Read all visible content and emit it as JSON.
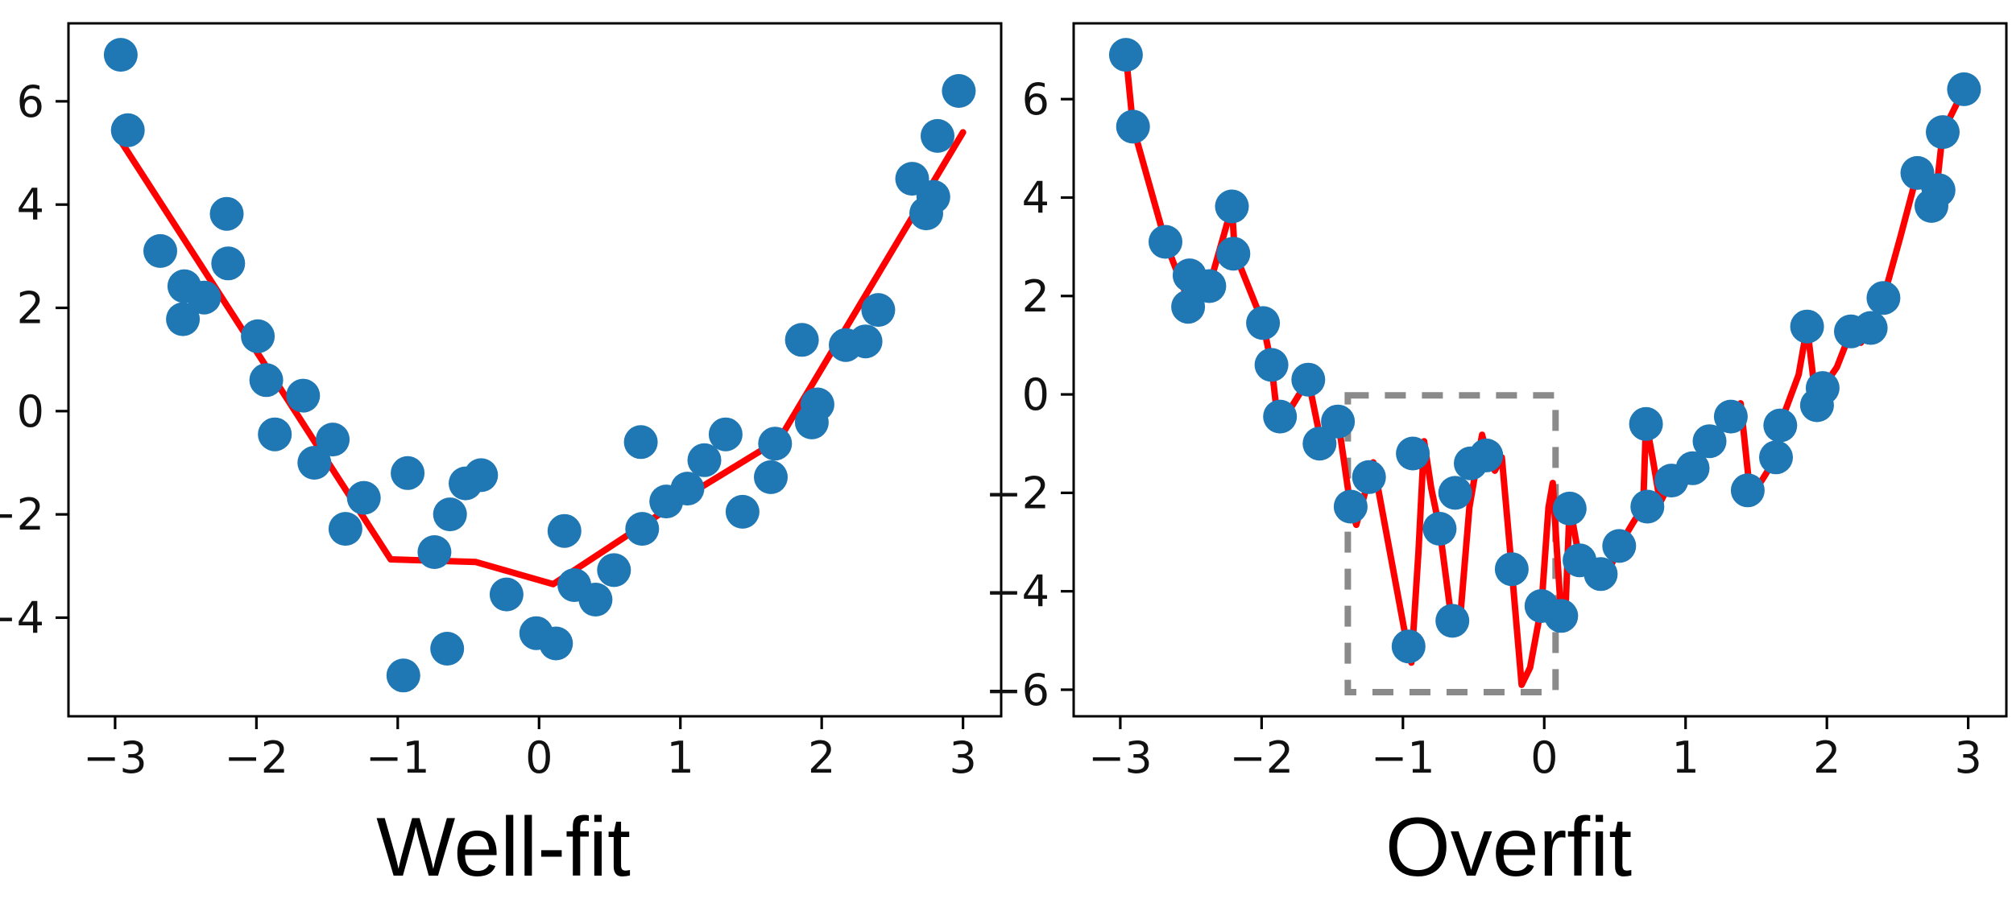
{
  "chart_data": {
    "type": "scatter",
    "description": "Two matplotlib-style panels comparing a well-fit model and an overfit model on the same noisy parabola-like dataset",
    "colors": {
      "scatter": "#1f77b4",
      "fit_line": "#ff0000",
      "highlight_box": "#8a8a8a",
      "axis": "#000000",
      "tick_text": "#111111",
      "title_text": "#000000",
      "background": "#ffffff"
    },
    "scatter": [
      [
        -2.96,
        6.9
      ],
      [
        -2.91,
        5.44
      ],
      [
        -2.68,
        3.1
      ],
      [
        -2.51,
        2.42
      ],
      [
        -2.52,
        1.78
      ],
      [
        -2.37,
        2.2
      ],
      [
        -2.21,
        3.82
      ],
      [
        -2.2,
        2.86
      ],
      [
        -1.99,
        1.45
      ],
      [
        -1.93,
        0.6
      ],
      [
        -1.87,
        -0.45
      ],
      [
        -1.67,
        0.3
      ],
      [
        -1.59,
        -1.0
      ],
      [
        -1.46,
        -0.55
      ],
      [
        -1.37,
        -2.28
      ],
      [
        -1.24,
        -1.68
      ],
      [
        -0.96,
        -5.12
      ],
      [
        -0.93,
        -1.2
      ],
      [
        -0.74,
        -2.73
      ],
      [
        -0.65,
        -4.6
      ],
      [
        -0.63,
        -2.0
      ],
      [
        -0.52,
        -1.4
      ],
      [
        -0.41,
        -1.24
      ],
      [
        -0.23,
        -3.55
      ],
      [
        -0.02,
        -4.3
      ],
      [
        0.12,
        -4.5
      ],
      [
        0.18,
        -2.32
      ],
      [
        0.25,
        -3.37
      ],
      [
        0.4,
        -3.65
      ],
      [
        0.53,
        -3.08
      ],
      [
        0.72,
        -0.6
      ],
      [
        0.73,
        -2.28
      ],
      [
        0.9,
        -1.75
      ],
      [
        1.05,
        -1.5
      ],
      [
        1.17,
        -0.95
      ],
      [
        1.32,
        -0.45
      ],
      [
        1.44,
        -1.95
      ],
      [
        1.64,
        -1.28
      ],
      [
        1.67,
        -0.63
      ],
      [
        1.86,
        1.38
      ],
      [
        1.93,
        -0.22
      ],
      [
        1.97,
        0.13
      ],
      [
        2.17,
        1.28
      ],
      [
        2.31,
        1.35
      ],
      [
        2.4,
        1.96
      ],
      [
        2.64,
        4.5
      ],
      [
        2.74,
        3.83
      ],
      [
        2.79,
        4.15
      ],
      [
        2.82,
        5.33
      ],
      [
        2.97,
        6.2
      ]
    ],
    "panels": [
      {
        "id": "well_fit",
        "title": "Well-fit",
        "x_ticks": [
          -3,
          -2,
          -1,
          0,
          1,
          2,
          3
        ],
        "y_ticks": [
          6,
          4,
          2,
          0,
          -2,
          -4
        ],
        "xlim": [
          -3.33,
          3.27
        ],
        "ylim": [
          -5.91,
          7.51
        ],
        "grid": false,
        "legend": null,
        "highlight_box": null,
        "fit_line": [
          [
            -3.0,
            5.4
          ],
          [
            -1.05,
            -2.87
          ],
          [
            -0.45,
            -2.92
          ],
          [
            0.1,
            -3.35
          ],
          [
            1.1,
            -1.55
          ],
          [
            1.7,
            -0.55
          ],
          [
            3.0,
            5.4
          ]
        ]
      },
      {
        "id": "overfit",
        "title": "Overfit",
        "x_ticks": [
          -3,
          -2,
          -1,
          0,
          1,
          2,
          3
        ],
        "y_ticks": [
          6,
          4,
          2,
          0,
          -2,
          -4,
          -6
        ],
        "xlim": [
          -3.33,
          3.27
        ],
        "ylim": [
          -6.54,
          7.54
        ],
        "grid": false,
        "legend": null,
        "highlight_box": {
          "x0": -1.39,
          "x1": 0.08,
          "y0": -6.05,
          "y1": -0.02
        },
        "fit_line": [
          [
            -2.96,
            6.9
          ],
          [
            -2.91,
            5.44
          ],
          [
            -2.68,
            3.1
          ],
          [
            -2.56,
            2.2
          ],
          [
            -2.5,
            1.85
          ],
          [
            -2.43,
            1.9
          ],
          [
            -2.37,
            2.2
          ],
          [
            -2.21,
            3.82
          ],
          [
            -2.19,
            2.88
          ],
          [
            -1.99,
            1.45
          ],
          [
            -1.93,
            0.6
          ],
          [
            -1.88,
            -0.68
          ],
          [
            -1.67,
            0.3
          ],
          [
            -1.57,
            -1.1
          ],
          [
            -1.46,
            -0.5
          ],
          [
            -1.37,
            -2.3
          ],
          [
            -1.33,
            -2.65
          ],
          [
            -1.21,
            -1.38
          ],
          [
            -0.97,
            -5.1
          ],
          [
            -0.94,
            -5.45
          ],
          [
            -0.89,
            -3.2
          ],
          [
            -0.85,
            -0.95
          ],
          [
            -0.8,
            -1.9
          ],
          [
            -0.74,
            -2.73
          ],
          [
            -0.66,
            -4.5
          ],
          [
            -0.6,
            -4.72
          ],
          [
            -0.53,
            -2.3
          ],
          [
            -0.47,
            -1.3
          ],
          [
            -0.44,
            -0.82
          ],
          [
            -0.4,
            -1.3
          ],
          [
            -0.35,
            -1.55
          ],
          [
            -0.3,
            -1.28
          ],
          [
            -0.23,
            -3.55
          ],
          [
            -0.16,
            -5.9
          ],
          [
            -0.1,
            -5.55
          ],
          [
            -0.02,
            -4.3
          ],
          [
            0.03,
            -2.3
          ],
          [
            0.06,
            -1.8
          ],
          [
            0.09,
            -3.2
          ],
          [
            0.12,
            -4.5
          ],
          [
            0.15,
            -4.4
          ],
          [
            0.18,
            -2.25
          ],
          [
            0.25,
            -3.37
          ],
          [
            0.33,
            -3.6
          ],
          [
            0.4,
            -3.72
          ],
          [
            0.47,
            -3.5
          ],
          [
            0.53,
            -3.08
          ],
          [
            0.63,
            -2.6
          ],
          [
            0.7,
            -2.28
          ],
          [
            0.72,
            -0.55
          ],
          [
            0.77,
            -1.35
          ],
          [
            0.82,
            -2.2
          ],
          [
            0.9,
            -1.75
          ],
          [
            0.98,
            -1.9
          ],
          [
            1.05,
            -1.5
          ],
          [
            1.17,
            -0.95
          ],
          [
            1.32,
            -0.45
          ],
          [
            1.39,
            -0.18
          ],
          [
            1.46,
            -2.1
          ],
          [
            1.55,
            -1.7
          ],
          [
            1.64,
            -1.28
          ],
          [
            1.67,
            -0.6
          ],
          [
            1.8,
            0.4
          ],
          [
            1.86,
            1.38
          ],
          [
            1.93,
            -0.3
          ],
          [
            1.97,
            0.13
          ],
          [
            2.07,
            0.55
          ],
          [
            2.17,
            1.28
          ],
          [
            2.24,
            1.05
          ],
          [
            2.31,
            1.35
          ],
          [
            2.4,
            1.96
          ],
          [
            2.52,
            3.2
          ],
          [
            2.64,
            4.5
          ],
          [
            2.76,
            3.75
          ],
          [
            2.82,
            5.33
          ],
          [
            2.97,
            6.2
          ]
        ]
      }
    ]
  }
}
